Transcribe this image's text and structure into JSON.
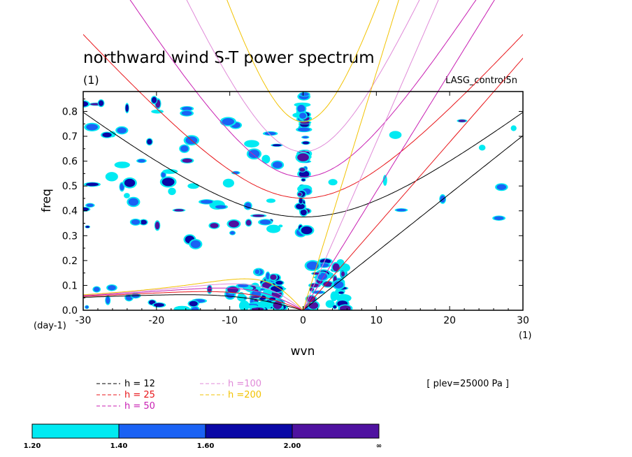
{
  "chart_data": {
    "type": "heatmap",
    "title": "northward wind S-T power spectrum",
    "subtitle": "(1)",
    "experiment": "LASG_control5n",
    "xlabel": "wvn",
    "ylabel": "freq",
    "x_unit": "(1)",
    "y_unit": "(day-1)",
    "xlim": [
      -30,
      30
    ],
    "ylim": [
      0,
      0.88
    ],
    "x_ticks": [
      "-30",
      "-20",
      "-10",
      "0",
      "10",
      "20",
      "30"
    ],
    "x_tick_values": [
      -30,
      -20,
      -10,
      0,
      10,
      20,
      30
    ],
    "y_ticks": [
      "0.0",
      "0.1",
      "0.2",
      "0.3",
      "0.4",
      "0.5",
      "0.6",
      "0.7",
      "0.8"
    ],
    "y_tick_values": [
      0,
      0.1,
      0.2,
      0.3,
      0.4,
      0.5,
      0.6,
      0.7,
      0.8
    ],
    "annotation": "[ plev=25000 Pa ]",
    "legend": [
      {
        "label": "h = 12",
        "color": "#000000",
        "h": 12
      },
      {
        "label": "h = 25",
        "color": "#e8161a",
        "h": 25
      },
      {
        "label": "h = 50",
        "color": "#c81fb2",
        "h": 50
      },
      {
        "label": "h =100",
        "color": "#e08ad8",
        "h": 100
      },
      {
        "label": "h =200",
        "color": "#f2c200",
        "h": 200
      }
    ],
    "colorbar": {
      "levels": [
        "1.20",
        "1.40",
        "1.60",
        "2.00",
        "∞"
      ],
      "colors": [
        "#00eaf2",
        "#1a62f4",
        "#0a08a6",
        "#4f12a0"
      ]
    },
    "dispersion_curves": [
      "Rossby",
      "inertia-gravity",
      "Kelvin"
    ],
    "regions": [
      {
        "x_range": [
          -30,
          -14
        ],
        "y_range": [
          0.25,
          0.88
        ],
        "density": "high"
      },
      {
        "x_range": [
          -14,
          -3
        ],
        "y_range": [
          0.3,
          0.82
        ],
        "density": "medium"
      },
      {
        "x_range": [
          -0.5,
          0.5
        ],
        "y_range": [
          0.3,
          0.88
        ],
        "density": "high"
      },
      {
        "x_range": [
          -7,
          -3
        ],
        "y_range": [
          0.0,
          0.16
        ],
        "density": "high"
      },
      {
        "x_range": [
          1,
          6
        ],
        "y_range": [
          0.0,
          0.2
        ],
        "density": "high"
      },
      {
        "x_range": [
          -30,
          -3
        ],
        "y_range": [
          0.0,
          0.1
        ],
        "density": "medium"
      },
      {
        "x_range": [
          3,
          30
        ],
        "y_range": [
          0.3,
          0.8
        ],
        "density": "low"
      }
    ]
  }
}
